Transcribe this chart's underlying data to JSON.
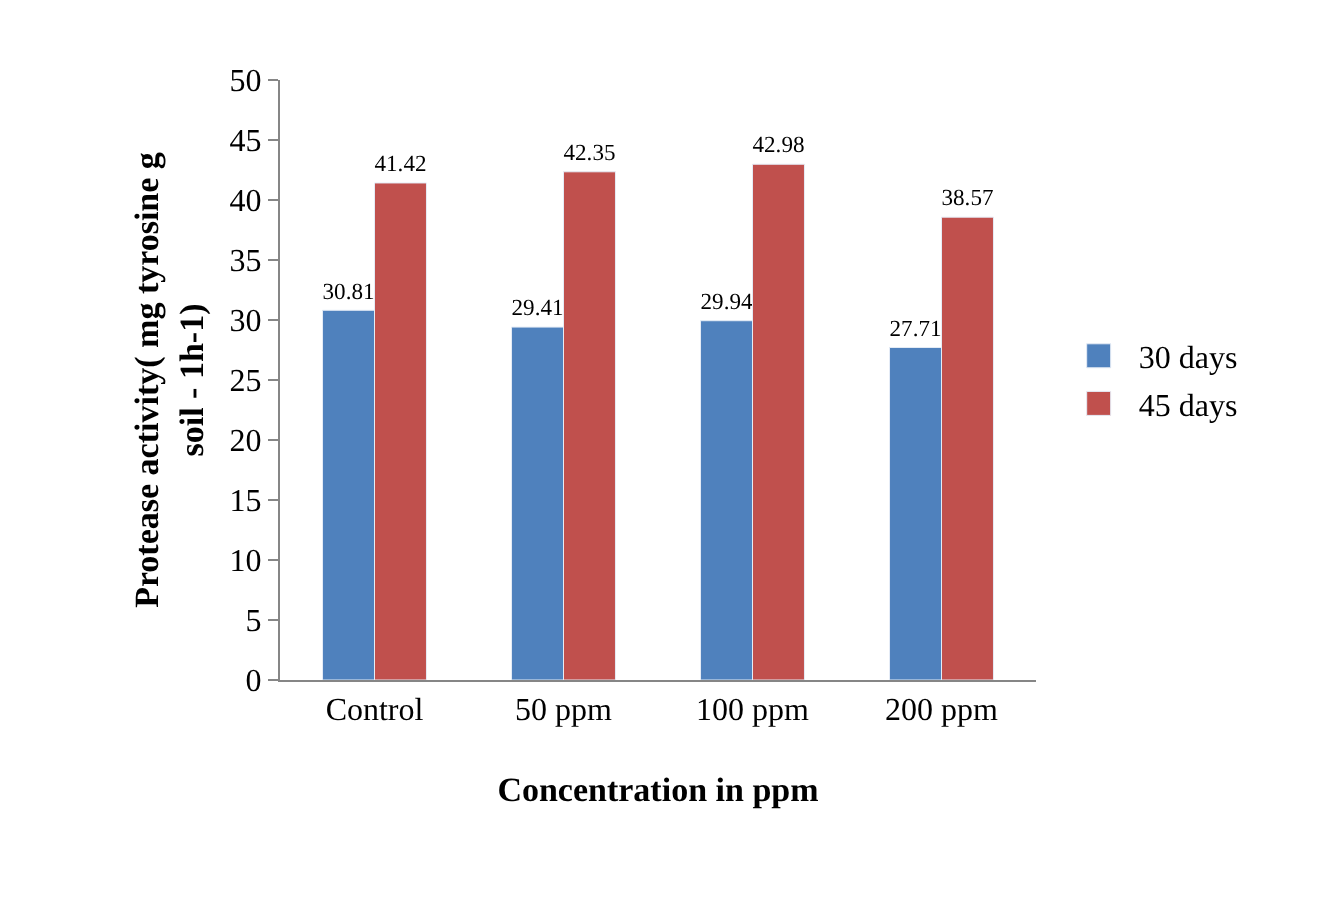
{
  "chart_data": {
    "type": "bar",
    "xlabel": "Concentration in ppm",
    "ylabel": "Protease activity( mg tyrosine g soil - 1h-1)",
    "categories": [
      "Control",
      "50 ppm",
      "100 ppm",
      "200 ppm"
    ],
    "series": [
      {
        "name": "30 days",
        "color": "#4f81bd",
        "values": [
          30.81,
          29.41,
          29.94,
          27.71
        ]
      },
      {
        "name": "45 days",
        "color": "#c0504d",
        "values": [
          41.42,
          42.35,
          42.98,
          38.57
        ]
      }
    ],
    "ylim": [
      0,
      50
    ],
    "yticks": [
      0,
      5,
      10,
      15,
      20,
      25,
      30,
      35,
      40,
      45,
      50
    ],
    "grid": false,
    "legend": "right",
    "data_labels": true
  }
}
